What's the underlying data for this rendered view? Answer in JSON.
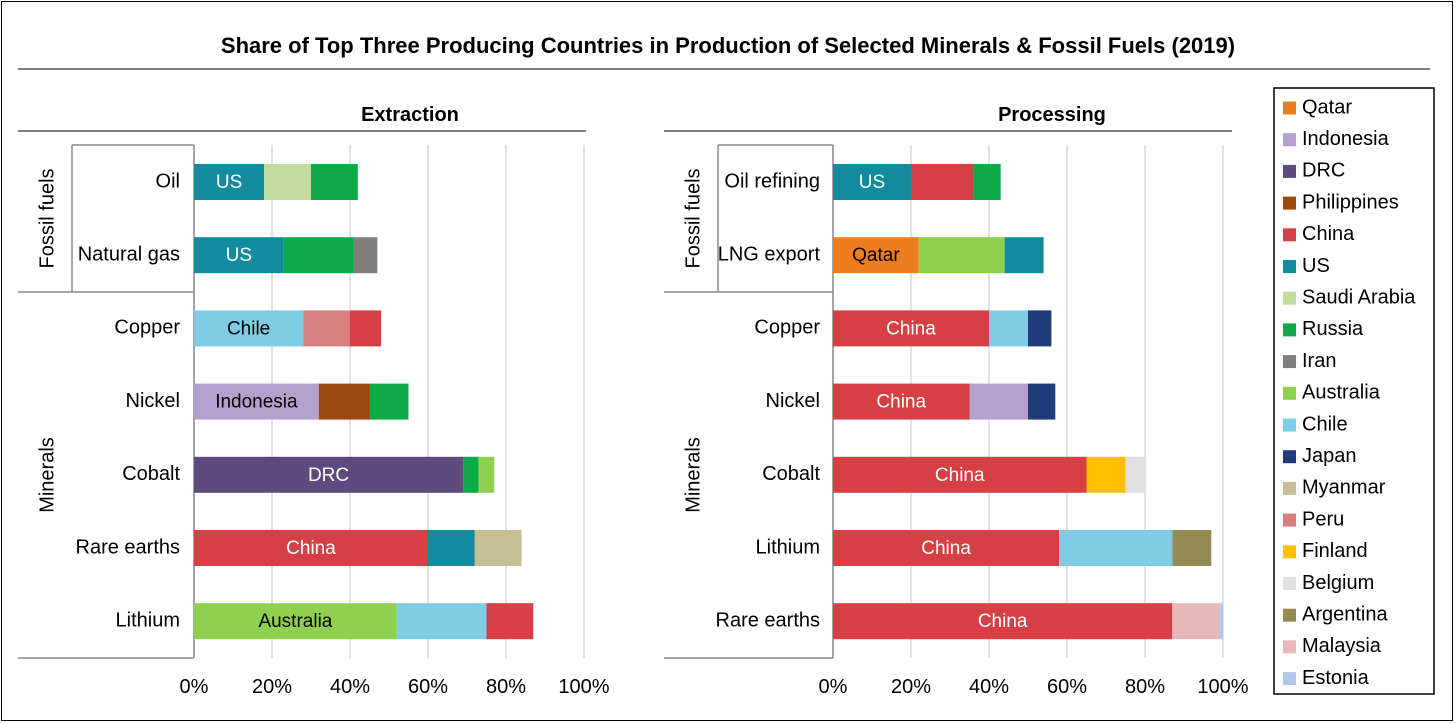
{
  "title": "Share of Top Three Producing Countries in Production of Selected Minerals & Fossil Fuels (2019)",
  "colors": {
    "Qatar": "#ED7D1F",
    "Indonesia": "#B4A0CC",
    "DRC": "#5E4A7E",
    "Philippines": "#9A4A0C",
    "China": "#D64045",
    "US": "#138B9E",
    "Saudi Arabia": "#C2DB9F",
    "Russia": "#0EAA48",
    "Iran": "#7F7F7F",
    "Australia": "#8FD14F",
    "Chile": "#7ECDE4",
    "Japan": "#1F3C78",
    "Myanmar": "#C8BE96",
    "Peru": "#D88080",
    "Finland": "#FFC000",
    "Belgium": "#E0E0E0",
    "Argentina": "#948A54",
    "Malaysia": "#E6B8B8",
    "Estonia": "#B4C7E7"
  },
  "legend": [
    "Qatar",
    "Indonesia",
    "DRC",
    "Philippines",
    "China",
    "US",
    "Saudi Arabia",
    "Russia",
    "Iran",
    "Australia",
    "Chile",
    "Japan",
    "Myanmar",
    "Peru",
    "Finland",
    "Belgium",
    "Argentina",
    "Malaysia",
    "Estonia"
  ],
  "chart_data": [
    {
      "type": "bar",
      "orientation": "horizontal",
      "stacked": true,
      "title": "Extraction",
      "xlim": [
        0,
        100
      ],
      "x_ticks": [
        "0%",
        "20%",
        "40%",
        "60%",
        "80%",
        "100%"
      ],
      "grid": true,
      "groups": [
        {
          "name": "Fossil fuels",
          "categories": [
            "Oil",
            "Natural gas"
          ]
        },
        {
          "name": "Minerals",
          "categories": [
            "Copper",
            "Nickel",
            "Cobalt",
            "Rare earths",
            "Lithium"
          ]
        }
      ],
      "bars": [
        {
          "category": "Oil",
          "segments": [
            {
              "country": "US",
              "value": 18,
              "label": "US"
            },
            {
              "country": "Saudi Arabia",
              "value": 12
            },
            {
              "country": "Russia",
              "value": 12
            }
          ]
        },
        {
          "category": "Natural gas",
          "segments": [
            {
              "country": "US",
              "value": 23,
              "label": "US"
            },
            {
              "country": "Russia",
              "value": 18
            },
            {
              "country": "Iran",
              "value": 6
            }
          ]
        },
        {
          "category": "Copper",
          "segments": [
            {
              "country": "Chile",
              "value": 28,
              "label": "Chile"
            },
            {
              "country": "Peru",
              "value": 12
            },
            {
              "country": "China",
              "value": 8
            }
          ]
        },
        {
          "category": "Nickel",
          "segments": [
            {
              "country": "Indonesia",
              "value": 32,
              "label": "Indonesia"
            },
            {
              "country": "Philippines",
              "value": 13
            },
            {
              "country": "Russia",
              "value": 10
            }
          ]
        },
        {
          "category": "Cobalt",
          "segments": [
            {
              "country": "DRC",
              "value": 69,
              "label": "DRC"
            },
            {
              "country": "Russia",
              "value": 4
            },
            {
              "country": "Australia",
              "value": 4
            }
          ]
        },
        {
          "category": "Rare earths",
          "segments": [
            {
              "country": "China",
              "value": 60,
              "label": "China"
            },
            {
              "country": "US",
              "value": 12
            },
            {
              "country": "Myanmar",
              "value": 12
            }
          ]
        },
        {
          "category": "Lithium",
          "segments": [
            {
              "country": "Australia",
              "value": 52,
              "label": "Australia"
            },
            {
              "country": "Chile",
              "value": 23
            },
            {
              "country": "China",
              "value": 12
            }
          ]
        }
      ]
    },
    {
      "type": "bar",
      "orientation": "horizontal",
      "stacked": true,
      "title": "Processing",
      "xlim": [
        0,
        100
      ],
      "x_ticks": [
        "0%",
        "20%",
        "40%",
        "60%",
        "80%",
        "100%"
      ],
      "grid": true,
      "groups": [
        {
          "name": "Fossil fuels",
          "categories": [
            "Oil refining",
            "LNG export"
          ]
        },
        {
          "name": "Minerals",
          "categories": [
            "Copper",
            "Nickel",
            "Cobalt",
            "Lithium",
            "Rare earths"
          ]
        }
      ],
      "bars": [
        {
          "category": "Oil refining",
          "segments": [
            {
              "country": "US",
              "value": 20,
              "label": "US"
            },
            {
              "country": "China",
              "value": 16
            },
            {
              "country": "Russia",
              "value": 7
            }
          ]
        },
        {
          "category": "LNG export",
          "segments": [
            {
              "country": "Qatar",
              "value": 22,
              "label": "Qatar"
            },
            {
              "country": "Australia",
              "value": 22
            },
            {
              "country": "US",
              "value": 10
            }
          ]
        },
        {
          "category": "Copper",
          "segments": [
            {
              "country": "China",
              "value": 40,
              "label": "China"
            },
            {
              "country": "Chile",
              "value": 10
            },
            {
              "country": "Japan",
              "value": 6
            }
          ]
        },
        {
          "category": "Nickel",
          "segments": [
            {
              "country": "China",
              "value": 35,
              "label": "China"
            },
            {
              "country": "Indonesia",
              "value": 15
            },
            {
              "country": "Japan",
              "value": 7
            }
          ]
        },
        {
          "category": "Cobalt",
          "segments": [
            {
              "country": "China",
              "value": 65,
              "label": "China"
            },
            {
              "country": "Finland",
              "value": 10
            },
            {
              "country": "Belgium",
              "value": 5
            }
          ]
        },
        {
          "category": "Lithium",
          "segments": [
            {
              "country": "China",
              "value": 58,
              "label": "China"
            },
            {
              "country": "Chile",
              "value": 29
            },
            {
              "country": "Argentina",
              "value": 10
            }
          ]
        },
        {
          "category": "Rare earths",
          "segments": [
            {
              "country": "China",
              "value": 87,
              "label": "China"
            },
            {
              "country": "Malaysia",
              "value": 12
            },
            {
              "country": "Estonia",
              "value": 1
            }
          ]
        }
      ]
    }
  ]
}
